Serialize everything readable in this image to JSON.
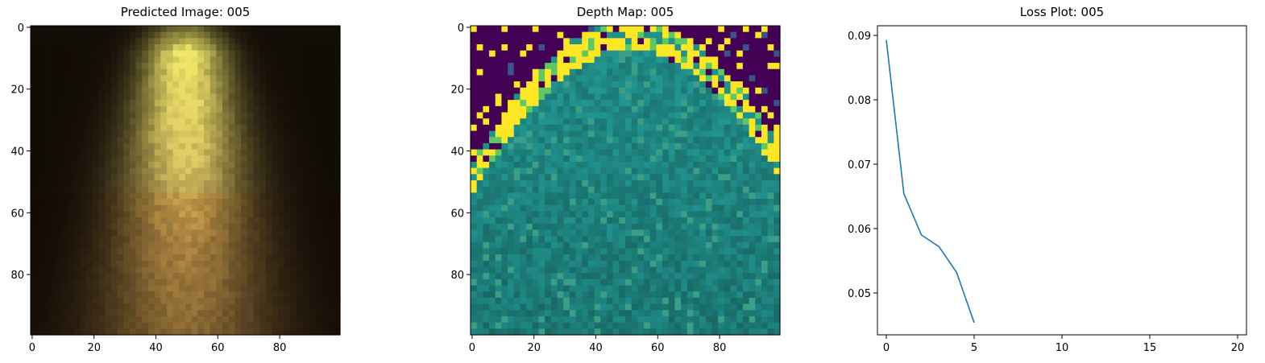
{
  "chart_data": [
    {
      "type": "heatmap",
      "title": "Predicted Image: 005",
      "xlim": [
        0,
        99
      ],
      "ylim": [
        99,
        0
      ],
      "xticks": [
        0,
        20,
        40,
        60,
        80
      ],
      "yticks": [
        0,
        20,
        40,
        60,
        80
      ],
      "grid": false,
      "description": "RGB image of a bright yellowish glowing cone on a dark background",
      "colors": {
        "background": "#0c0804",
        "glow_center": "#e8e48c",
        "glow_edge": "#8a6a42"
      }
    },
    {
      "type": "heatmap",
      "title": "Depth Map: 005",
      "xlim": [
        0,
        99
      ],
      "ylim": [
        99,
        0
      ],
      "xticks": [
        0,
        20,
        40,
        60,
        80
      ],
      "yticks": [
        0,
        20,
        40,
        60,
        80
      ],
      "grid": false,
      "colormap": "viridis",
      "colors": {
        "low": "#440154",
        "mid_low": "#3b528b",
        "mid": "#21918c",
        "high": "#5ec962",
        "top": "#fde725"
      }
    },
    {
      "type": "line",
      "title": "Loss Plot: 005",
      "xlim": [
        0,
        20
      ],
      "ylim": [
        0.0435,
        0.0915
      ],
      "xticks": [
        0,
        5,
        10,
        15,
        20
      ],
      "yticks": [
        0.05,
        0.06,
        0.07,
        0.08,
        0.09
      ],
      "grid": false,
      "series": [
        {
          "x": [
            0,
            1,
            2,
            3,
            4,
            5
          ],
          "values": [
            0.0893,
            0.0654,
            0.059,
            0.0572,
            0.0532,
            0.0454
          ],
          "color": "#1f77b4"
        }
      ]
    }
  ]
}
